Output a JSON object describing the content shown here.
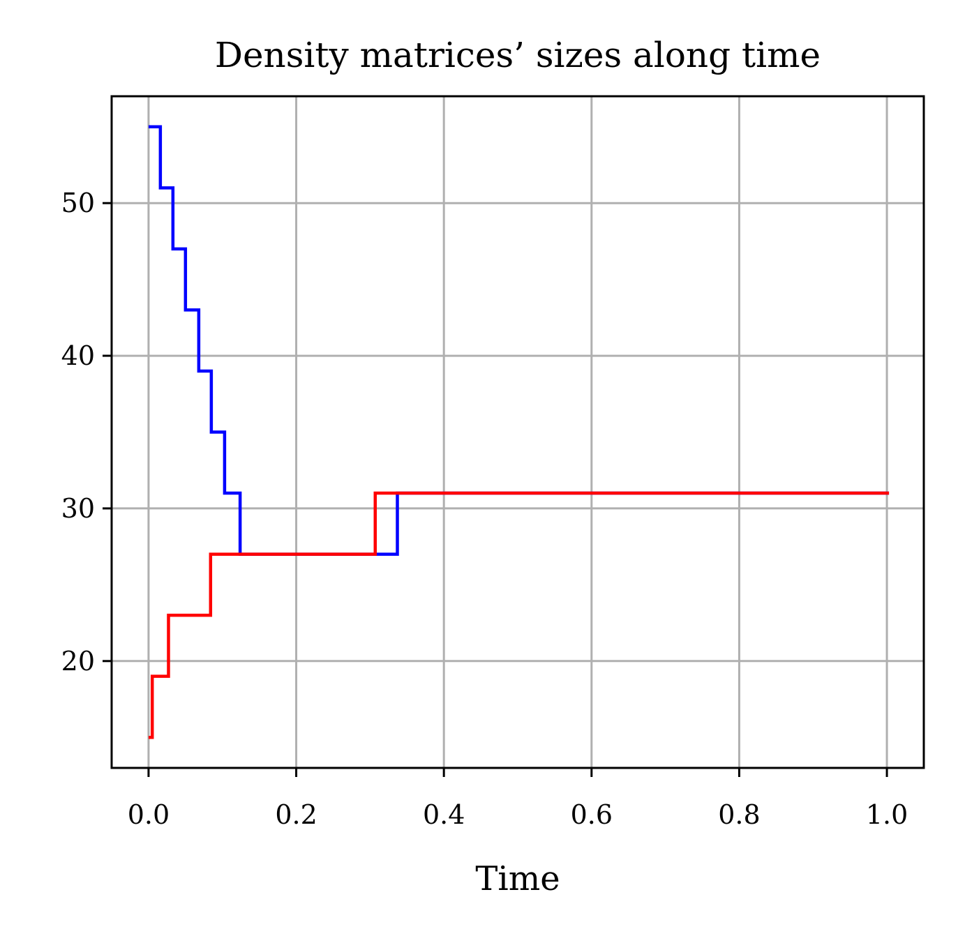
{
  "chart_data": {
    "type": "line",
    "step": "post",
    "title": "Density matrices’ sizes along time",
    "xlabel": "Time",
    "ylabel": "",
    "xlim": [
      -0.05,
      1.05
    ],
    "ylim": [
      13,
      57
    ],
    "xticks": [
      0.0,
      0.2,
      0.4,
      0.6,
      0.8,
      1.0
    ],
    "xtick_labels": [
      "0.0",
      "0.2",
      "0.4",
      "0.6",
      "0.8",
      "1.0"
    ],
    "yticks": [
      20,
      30,
      40,
      50
    ],
    "ytick_labels": [
      "20",
      "30",
      "40",
      "50"
    ],
    "grid": true,
    "legend": "none",
    "series": [
      {
        "color": "#0000ff",
        "x": [
          0.0,
          0.016,
          0.033,
          0.05,
          0.068,
          0.085,
          0.103,
          0.124,
          0.337,
          1.0
        ],
        "y": [
          55,
          51,
          47,
          43,
          39,
          35,
          31,
          27,
          31,
          31
        ]
      },
      {
        "color": "#ff0000",
        "x": [
          0.0,
          0.005,
          0.027,
          0.084,
          0.307,
          1.0
        ],
        "y": [
          15,
          19,
          23,
          27,
          31,
          31
        ]
      }
    ]
  }
}
